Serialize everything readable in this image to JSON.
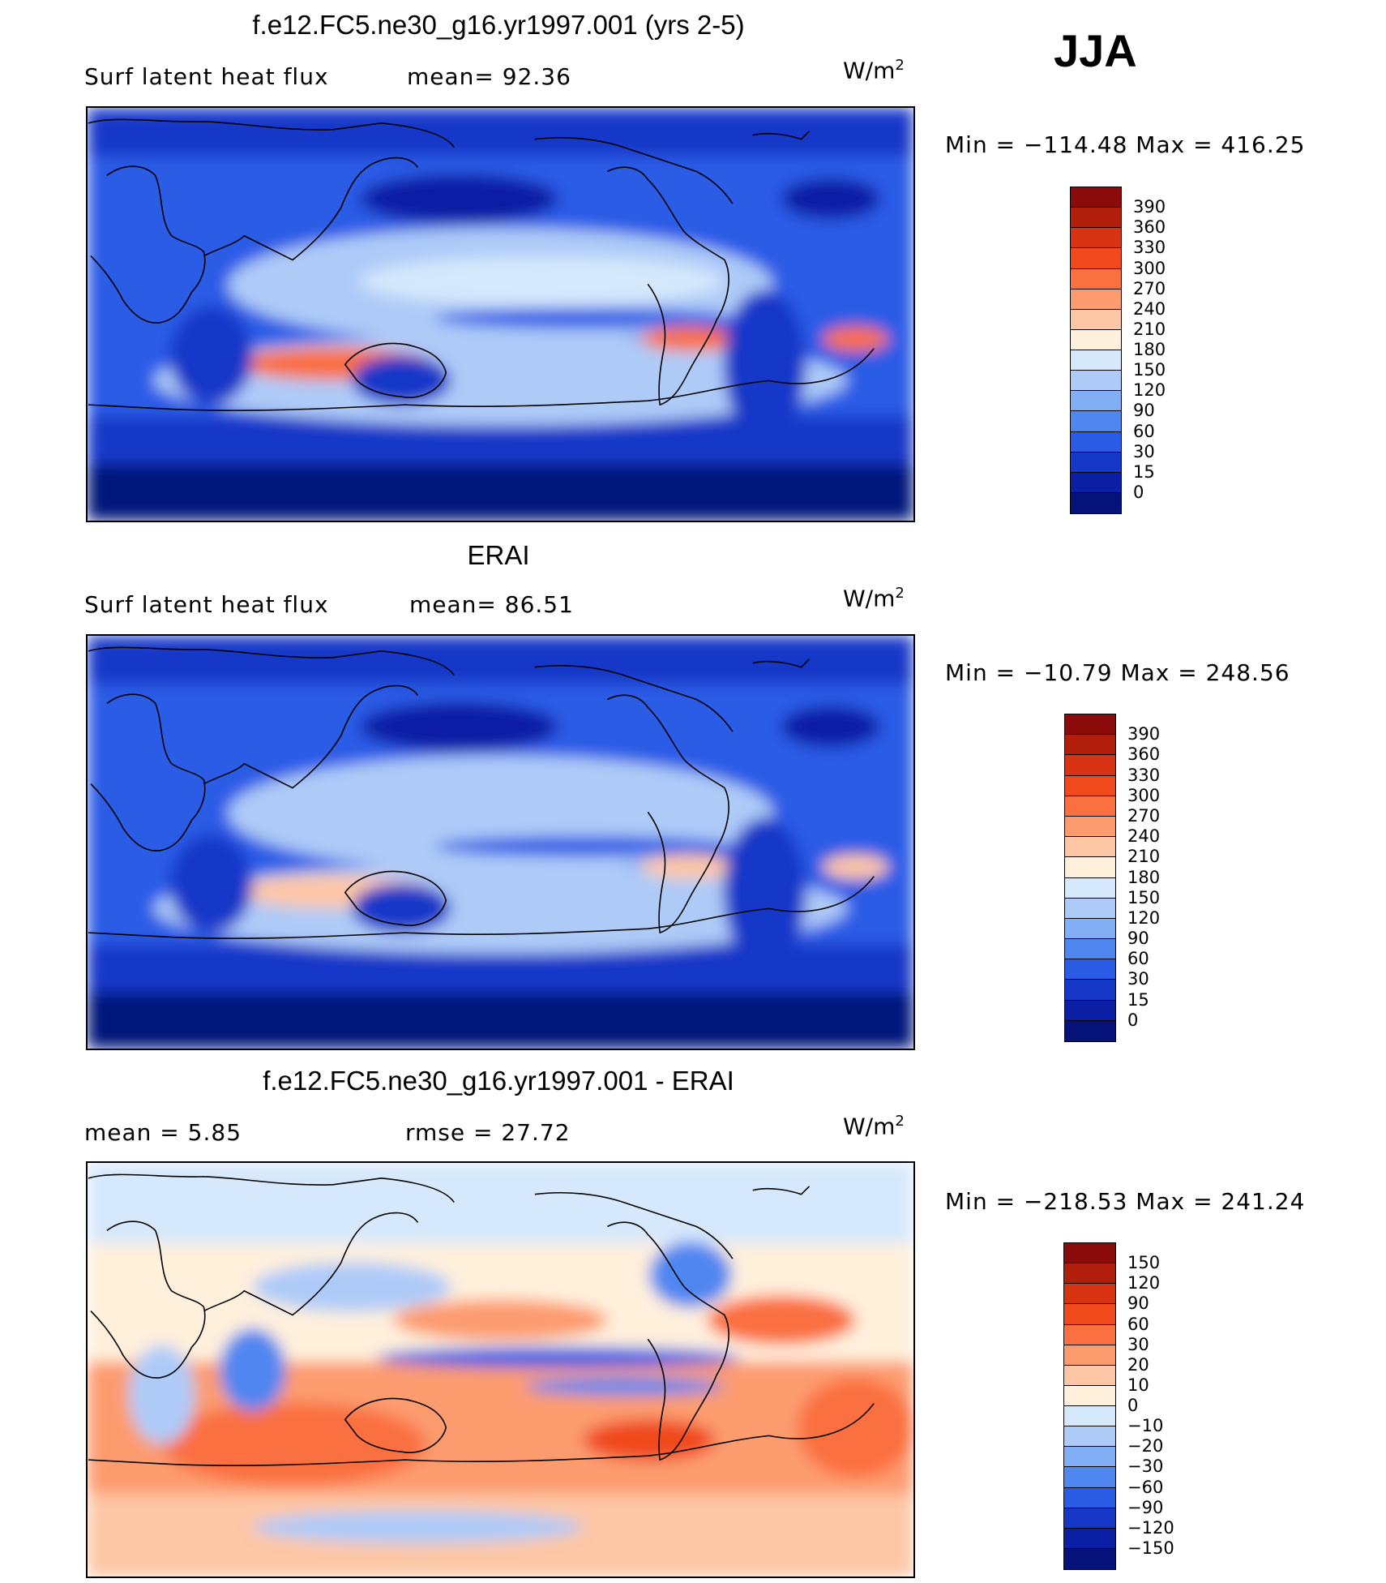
{
  "season": "JJA",
  "panels": [
    {
      "title": "f.e12.FC5.ne30_g16.yr1997.001 (yrs 2-5)",
      "left_label": "Surf  latent  heat  flux",
      "mid_label": "mean=   92.36",
      "units": "W/m",
      "units_sup": "2",
      "minmax": "Min  =  −114.48  Max  =  416.25",
      "colorbar_labels": [
        "390",
        "360",
        "330",
        "300",
        "270",
        "240",
        "210",
        "180",
        "150",
        "120",
        "90",
        "60",
        "30",
        "15",
        "0"
      ],
      "colors": [
        "#8b0a0a",
        "#b21e0c",
        "#d83312",
        "#f04a1c",
        "#fa7040",
        "#fc9b6e",
        "#fdc6a4",
        "#fff0dc",
        "#d6e8fb",
        "#aecbf8",
        "#82aef5",
        "#4f86f0",
        "#2a5ce6",
        "#1638c8",
        "#0a1fa4",
        "#05127a"
      ],
      "field": "model"
    },
    {
      "title": "ERAI",
      "left_label": "Surf  latent  heat  flux",
      "mid_label": "mean=   86.51",
      "units": "W/m",
      "units_sup": "2",
      "minmax": "Min  =  −10.79  Max  =  248.56",
      "colorbar_labels": [
        "390",
        "360",
        "330",
        "300",
        "270",
        "240",
        "210",
        "180",
        "150",
        "120",
        "90",
        "60",
        "30",
        "15",
        "0"
      ],
      "colors": [
        "#8b0a0a",
        "#b21e0c",
        "#d83312",
        "#f04a1c",
        "#fa7040",
        "#fc9b6e",
        "#fdc6a4",
        "#fff0dc",
        "#d6e8fb",
        "#aecbf8",
        "#82aef5",
        "#4f86f0",
        "#2a5ce6",
        "#1638c8",
        "#0a1fa4",
        "#05127a"
      ],
      "field": "obs"
    },
    {
      "title": "f.e12.FC5.ne30_g16.yr1997.001 - ERAI",
      "left_label": "mean  =     5.85",
      "mid_label": "rmse  =    27.72",
      "units": "W/m",
      "units_sup": "2",
      "minmax": "Min  =  −218.53  Max  =  241.24",
      "colorbar_labels": [
        "150",
        "120",
        "90",
        "60",
        "30",
        "20",
        "10",
        "0",
        "−10",
        "−20",
        "−30",
        "−60",
        "−90",
        "−120",
        "−150"
      ],
      "colors": [
        "#8b0a0a",
        "#b21e0c",
        "#d83312",
        "#f04a1c",
        "#fa7040",
        "#fc9b6e",
        "#fdc6a4",
        "#fff0dc",
        "#d6e8fb",
        "#aecbf8",
        "#82aef5",
        "#4f86f0",
        "#2a5ce6",
        "#1638c8",
        "#0a1fa4",
        "#05127a"
      ],
      "field": "diff"
    }
  ]
}
